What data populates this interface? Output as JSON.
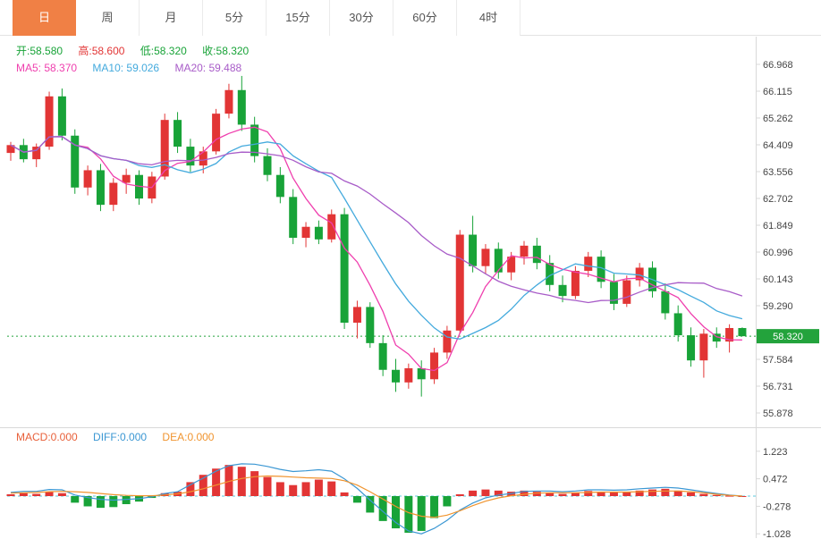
{
  "tabs": [
    {
      "label": "日",
      "active": true
    },
    {
      "label": "周",
      "active": false
    },
    {
      "label": "月",
      "active": false
    },
    {
      "label": "5分",
      "active": false
    },
    {
      "label": "15分",
      "active": false
    },
    {
      "label": "30分",
      "active": false
    },
    {
      "label": "60分",
      "active": false
    },
    {
      "label": "4时",
      "active": false
    }
  ],
  "ohlc_bar": {
    "open_label": "开:",
    "open_value": "58.580",
    "high_label": "高:",
    "high_value": "58.600",
    "low_label": "低:",
    "low_value": "58.320",
    "close_label": "收:",
    "close_value": "58.320"
  },
  "ma_bar": {
    "ma5_label": "MA5: ",
    "ma5_value": "58.370",
    "ma10_label": "MA10: ",
    "ma10_value": "59.026",
    "ma20_label": "MA20: ",
    "ma20_value": "59.488"
  },
  "macd_bar": {
    "macd_label": "MACD:",
    "macd_value": "0.000",
    "diff_label": "DIFF:",
    "diff_value": "0.000",
    "dea_label": "DEA:",
    "dea_value": "0.000"
  },
  "price_badge": "58.320",
  "colors": {
    "up": "#e23535",
    "down": "#18a338",
    "ma5": "#ef3fae",
    "ma10": "#44aadd",
    "ma20": "#a85cc8",
    "badge": "#23a33c",
    "active_tab": "#f08045",
    "diff_line": "#3b97d3",
    "dea_line": "#f0942f",
    "macd_text": "#e8603a",
    "zero_line": "#5bc8dc",
    "price_line": "#23a33c",
    "axis_text": "#444444",
    "border": "#d9d9d9"
  },
  "chart_data": [
    {
      "type": "candlestick",
      "title": "Daily K-line with MA5/MA10/MA20",
      "ylim": [
        55.7,
        67.2
      ],
      "y_ticks": [
        66.968,
        66.115,
        65.262,
        64.409,
        63.556,
        62.702,
        61.849,
        60.996,
        60.143,
        59.29,
        57.584,
        56.731,
        55.878
      ],
      "last_price": 58.32,
      "ma_periods": [
        5,
        10,
        20
      ],
      "candles": [
        [
          64.15,
          64.5,
          63.9,
          64.4
        ],
        [
          64.4,
          64.6,
          63.85,
          63.95
        ],
        [
          63.95,
          64.45,
          63.7,
          64.35
        ],
        [
          64.35,
          66.1,
          64.25,
          65.95
        ],
        [
          65.95,
          66.2,
          64.55,
          64.7
        ],
        [
          64.7,
          64.9,
          62.85,
          63.05
        ],
        [
          63.05,
          63.75,
          62.8,
          63.6
        ],
        [
          63.6,
          63.8,
          62.3,
          62.5
        ],
        [
          62.5,
          63.35,
          62.3,
          63.2
        ],
        [
          63.2,
          63.65,
          62.85,
          63.45
        ],
        [
          63.45,
          63.6,
          62.5,
          62.7
        ],
        [
          62.7,
          63.55,
          62.55,
          63.4
        ],
        [
          63.4,
          65.4,
          63.3,
          65.2
        ],
        [
          65.2,
          65.45,
          64.15,
          64.35
        ],
        [
          64.35,
          64.6,
          63.55,
          63.75
        ],
        [
          63.75,
          64.35,
          63.5,
          64.2
        ],
        [
          64.2,
          65.55,
          64.1,
          65.4
        ],
        [
          65.4,
          66.35,
          65.25,
          66.15
        ],
        [
          66.15,
          66.6,
          64.85,
          65.05
        ],
        [
          65.05,
          65.3,
          63.85,
          64.05
        ],
        [
          64.05,
          64.3,
          63.25,
          63.45
        ],
        [
          63.45,
          63.7,
          62.55,
          62.75
        ],
        [
          62.75,
          63.0,
          61.25,
          61.45
        ],
        [
          61.45,
          61.95,
          61.15,
          61.8
        ],
        [
          61.8,
          62.0,
          61.25,
          61.4
        ],
        [
          61.4,
          62.35,
          61.3,
          62.2
        ],
        [
          62.2,
          62.4,
          58.55,
          58.75
        ],
        [
          58.75,
          59.45,
          58.25,
          59.25
        ],
        [
          59.25,
          59.4,
          57.95,
          58.1
        ],
        [
          58.1,
          58.35,
          57.05,
          57.25
        ],
        [
          57.25,
          57.6,
          56.55,
          56.85
        ],
        [
          56.85,
          57.45,
          56.65,
          57.3
        ],
        [
          57.3,
          57.55,
          56.4,
          56.95
        ],
        [
          56.95,
          57.95,
          56.8,
          57.8
        ],
        [
          57.8,
          58.65,
          57.6,
          58.5
        ],
        [
          58.5,
          61.7,
          58.4,
          61.55
        ],
        [
          61.55,
          62.15,
          60.35,
          60.55
        ],
        [
          60.55,
          61.25,
          60.3,
          61.1
        ],
        [
          61.1,
          61.3,
          60.15,
          60.35
        ],
        [
          60.35,
          61.0,
          60.1,
          60.85
        ],
        [
          60.85,
          61.35,
          60.6,
          61.2
        ],
        [
          61.2,
          61.45,
          60.45,
          60.65
        ],
        [
          60.65,
          60.9,
          59.75,
          59.95
        ],
        [
          59.95,
          60.25,
          59.4,
          59.6
        ],
        [
          59.6,
          60.55,
          59.5,
          60.4
        ],
        [
          60.4,
          61.0,
          60.2,
          60.85
        ],
        [
          60.85,
          61.05,
          59.85,
          60.05
        ],
        [
          60.05,
          60.3,
          59.15,
          59.35
        ],
        [
          59.35,
          60.25,
          59.25,
          60.1
        ],
        [
          60.1,
          60.65,
          59.9,
          60.5
        ],
        [
          60.5,
          60.7,
          59.55,
          59.75
        ],
        [
          59.75,
          60.0,
          58.85,
          59.05
        ],
        [
          59.05,
          59.3,
          58.15,
          58.35
        ],
        [
          58.35,
          58.6,
          57.35,
          57.55
        ],
        [
          57.55,
          58.55,
          57.0,
          58.4
        ],
        [
          58.4,
          58.6,
          57.95,
          58.15
        ],
        [
          58.15,
          58.7,
          57.8,
          58.58
        ],
        [
          58.58,
          58.6,
          58.32,
          58.32
        ]
      ]
    },
    {
      "type": "bar",
      "title": "MACD",
      "ylim": [
        -1.1,
        1.35
      ],
      "y_ticks": [
        1.223,
        0.472,
        -0.278,
        -1.028
      ],
      "macd": [
        0.05,
        0.08,
        0.06,
        0.12,
        0.08,
        -0.18,
        -0.28,
        -0.32,
        -0.3,
        -0.22,
        -0.15,
        -0.05,
        0.08,
        0.12,
        0.38,
        0.58,
        0.75,
        0.85,
        0.8,
        0.68,
        0.52,
        0.38,
        0.3,
        0.38,
        0.45,
        0.4,
        0.1,
        -0.18,
        -0.45,
        -0.68,
        -0.88,
        -1.0,
        -0.95,
        -0.6,
        -0.28,
        0.05,
        0.15,
        0.18,
        0.15,
        0.12,
        0.15,
        0.12,
        0.1,
        0.06,
        0.1,
        0.14,
        0.12,
        0.1,
        0.12,
        0.15,
        0.18,
        0.2,
        0.15,
        0.1,
        0.06,
        0.03,
        0.01,
        0.0
      ],
      "diff": [
        0.1,
        0.13,
        0.13,
        0.18,
        0.17,
        0.03,
        -0.04,
        -0.09,
        -0.11,
        -0.09,
        -0.07,
        -0.02,
        0.07,
        0.12,
        0.31,
        0.49,
        0.68,
        0.83,
        0.88,
        0.87,
        0.81,
        0.73,
        0.67,
        0.69,
        0.72,
        0.68,
        0.47,
        0.21,
        -0.11,
        -0.42,
        -0.72,
        -0.95,
        -1.03,
        -0.88,
        -0.66,
        -0.38,
        -0.19,
        -0.05,
        0.03,
        0.07,
        0.13,
        0.14,
        0.14,
        0.12,
        0.14,
        0.17,
        0.17,
        0.16,
        0.17,
        0.2,
        0.22,
        0.24,
        0.22,
        0.17,
        0.12,
        0.07,
        0.03,
        0.0
      ],
      "dea": [
        0.08,
        0.09,
        0.1,
        0.12,
        0.13,
        0.12,
        0.1,
        0.07,
        0.04,
        0.02,
        0.01,
        0.01,
        0.03,
        0.06,
        0.12,
        0.2,
        0.3,
        0.4,
        0.48,
        0.53,
        0.55,
        0.54,
        0.52,
        0.5,
        0.49,
        0.48,
        0.42,
        0.3,
        0.12,
        -0.08,
        -0.28,
        -0.45,
        -0.55,
        -0.58,
        -0.52,
        -0.4,
        -0.26,
        -0.14,
        -0.05,
        0.01,
        0.05,
        0.08,
        0.09,
        0.09,
        0.09,
        0.1,
        0.11,
        0.11,
        0.11,
        0.12,
        0.13,
        0.14,
        0.14,
        0.12,
        0.09,
        0.05,
        0.02,
        0.0
      ]
    }
  ]
}
